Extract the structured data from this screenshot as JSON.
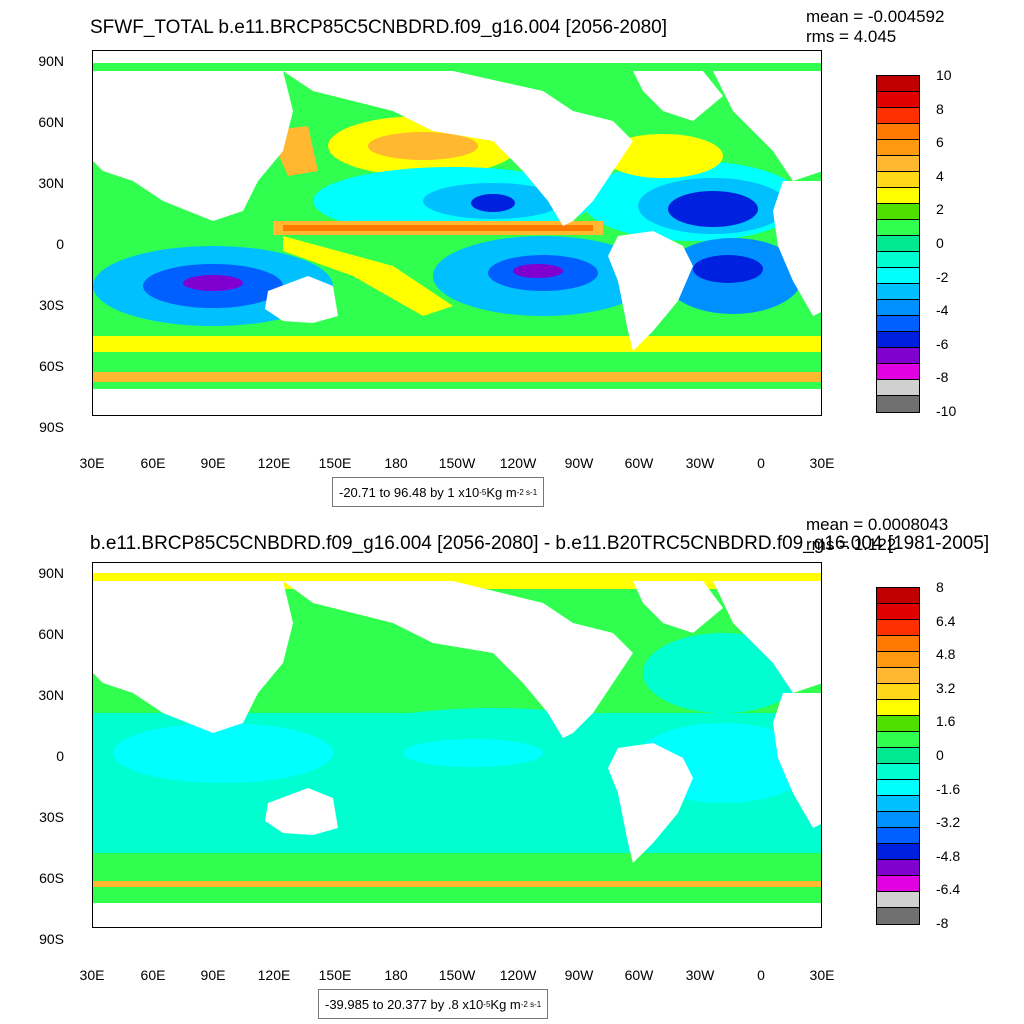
{
  "panels": [
    {
      "title": "SFWF_TOTAL b.e11.BRCP85C5CNBDRD.f09_g16.004 [2056-2080]",
      "mean": "mean = -0.004592",
      "rms": "rms = 4.045",
      "caption_prefix": "-20.71 to 96.48 by 1 x10",
      "caption_exp": "-5",
      "caption_units": " Kg m",
      "caption_units_exp": "-2 s-1",
      "colorbar_labels": [
        "10",
        "8",
        "6",
        "4",
        "2",
        "0",
        "-2",
        "-4",
        "-6",
        "-8",
        "-10"
      ],
      "colorbar_colors": [
        "#c00000",
        "#e00000",
        "#ff3000",
        "#ff7800",
        "#ff9a10",
        "#ffb830",
        "#ffd818",
        "#ffff00",
        "#50e000",
        "#30ff50",
        "#00e890",
        "#00ffd0",
        "#00ffff",
        "#00c0ff",
        "#0090ff",
        "#0060ff",
        "#0020e0",
        "#8000d0",
        "#e000e0",
        "#d0d0d0",
        "#707070"
      ]
    },
    {
      "title": "b.e11.BRCP85C5CNBDRD.f09_g16.004 [2056-2080] - b.e11.B20TRC5CNBDRD.f09_g16.004 [1981-2005]",
      "mean": "mean = 0.0008043",
      "rms": "rms = 1.122",
      "caption_prefix": "-39.985 to 20.377 by .8 x10",
      "caption_exp": "-5",
      "caption_units": " Kg m",
      "caption_units_exp": "-2 s-1",
      "colorbar_labels": [
        "8",
        "6.4",
        "4.8",
        "3.2",
        "1.6",
        "0",
        "-1.6",
        "-3.2",
        "-4.8",
        "-6.4",
        "-8"
      ],
      "colorbar_colors": [
        "#c00000",
        "#e00000",
        "#ff3000",
        "#ff7800",
        "#ff9a10",
        "#ffb830",
        "#ffd818",
        "#ffff00",
        "#50e000",
        "#30ff50",
        "#00e890",
        "#00ffd0",
        "#00ffff",
        "#00c0ff",
        "#0090ff",
        "#0060ff",
        "#0020e0",
        "#8000d0",
        "#e000e0",
        "#d0d0d0",
        "#707070"
      ]
    }
  ],
  "axes": {
    "lat_labels": [
      "90N",
      "60N",
      "30N",
      "0",
      "30S",
      "60S",
      "90S"
    ],
    "lon_labels": [
      "30E",
      "60E",
      "90E",
      "120E",
      "150E",
      "180",
      "150W",
      "120W",
      "90W",
      "60W",
      "30W",
      "0",
      "30E"
    ]
  },
  "map_colors": {
    "land": "#ffffff",
    "ocean_base_top": "#30ff50",
    "ocean_base_bottom": "#00ffd0",
    "neg_strong": "#0020e0",
    "neg_mid": "#0090ff",
    "neg_light": "#00c0ff",
    "neg_faint": "#00ffff",
    "neutral": "#00e890",
    "pos_light": "#50e000",
    "pos_yellow": "#ffff00",
    "pos_orange": "#ffb830",
    "pos_red": "#c00000",
    "purple": "#8000d0"
  }
}
